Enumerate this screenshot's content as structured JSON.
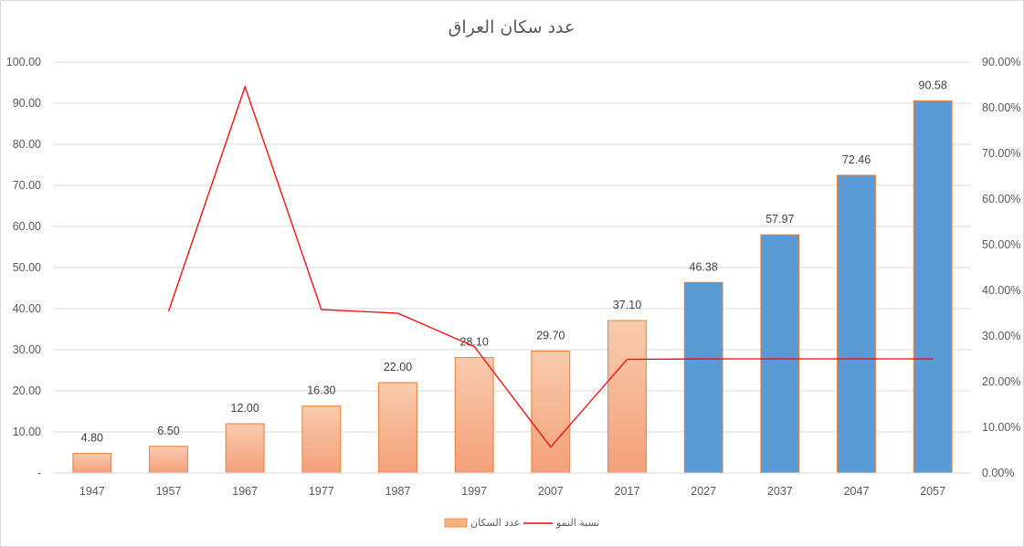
{
  "chart_data": {
    "type": "bar",
    "title": "عدد سكان العراق",
    "categories": [
      "1947",
      "1957",
      "1967",
      "1977",
      "1987",
      "1997",
      "2007",
      "2017",
      "2027",
      "2037",
      "2047",
      "2057"
    ],
    "series": [
      {
        "name": "عدد السكان",
        "type": "bar",
        "axis": "left",
        "values": [
          4.8,
          6.5,
          12.0,
          16.3,
          22.0,
          28.1,
          29.7,
          37.1,
          46.38,
          57.97,
          72.46,
          90.58
        ],
        "labels": [
          "4.80",
          "6.50",
          "12.00",
          "16.30",
          "22.00",
          "28.10",
          "29.70",
          "37.10",
          "46.38",
          "57.97",
          "72.46",
          "90.58"
        ],
        "color": "#f4b183",
        "projected_color": "#5b9bd5",
        "projected_from_index": 8
      },
      {
        "name": "نسبة النمو",
        "type": "line",
        "axis": "right",
        "values": [
          null,
          0.354,
          0.846,
          0.358,
          0.35,
          0.277,
          0.057,
          0.249,
          0.25,
          0.25,
          0.25,
          0.25
        ],
        "color": "#ff0000"
      }
    ],
    "y_left": {
      "range": [
        0,
        100
      ],
      "ticks": [
        "-",
        "10.00",
        "20.00",
        "30.00",
        "40.00",
        "50.00",
        "60.00",
        "70.00",
        "80.00",
        "90.00",
        "100.00"
      ]
    },
    "y_right": {
      "range": [
        0,
        0.9
      ],
      "ticks": [
        "0.00%",
        "10.00%",
        "20.00%",
        "30.00%",
        "40.00%",
        "50.00%",
        "60.00%",
        "70.00%",
        "80.00%",
        "90.00%"
      ]
    },
    "grid": true,
    "legend_position": "bottom"
  }
}
